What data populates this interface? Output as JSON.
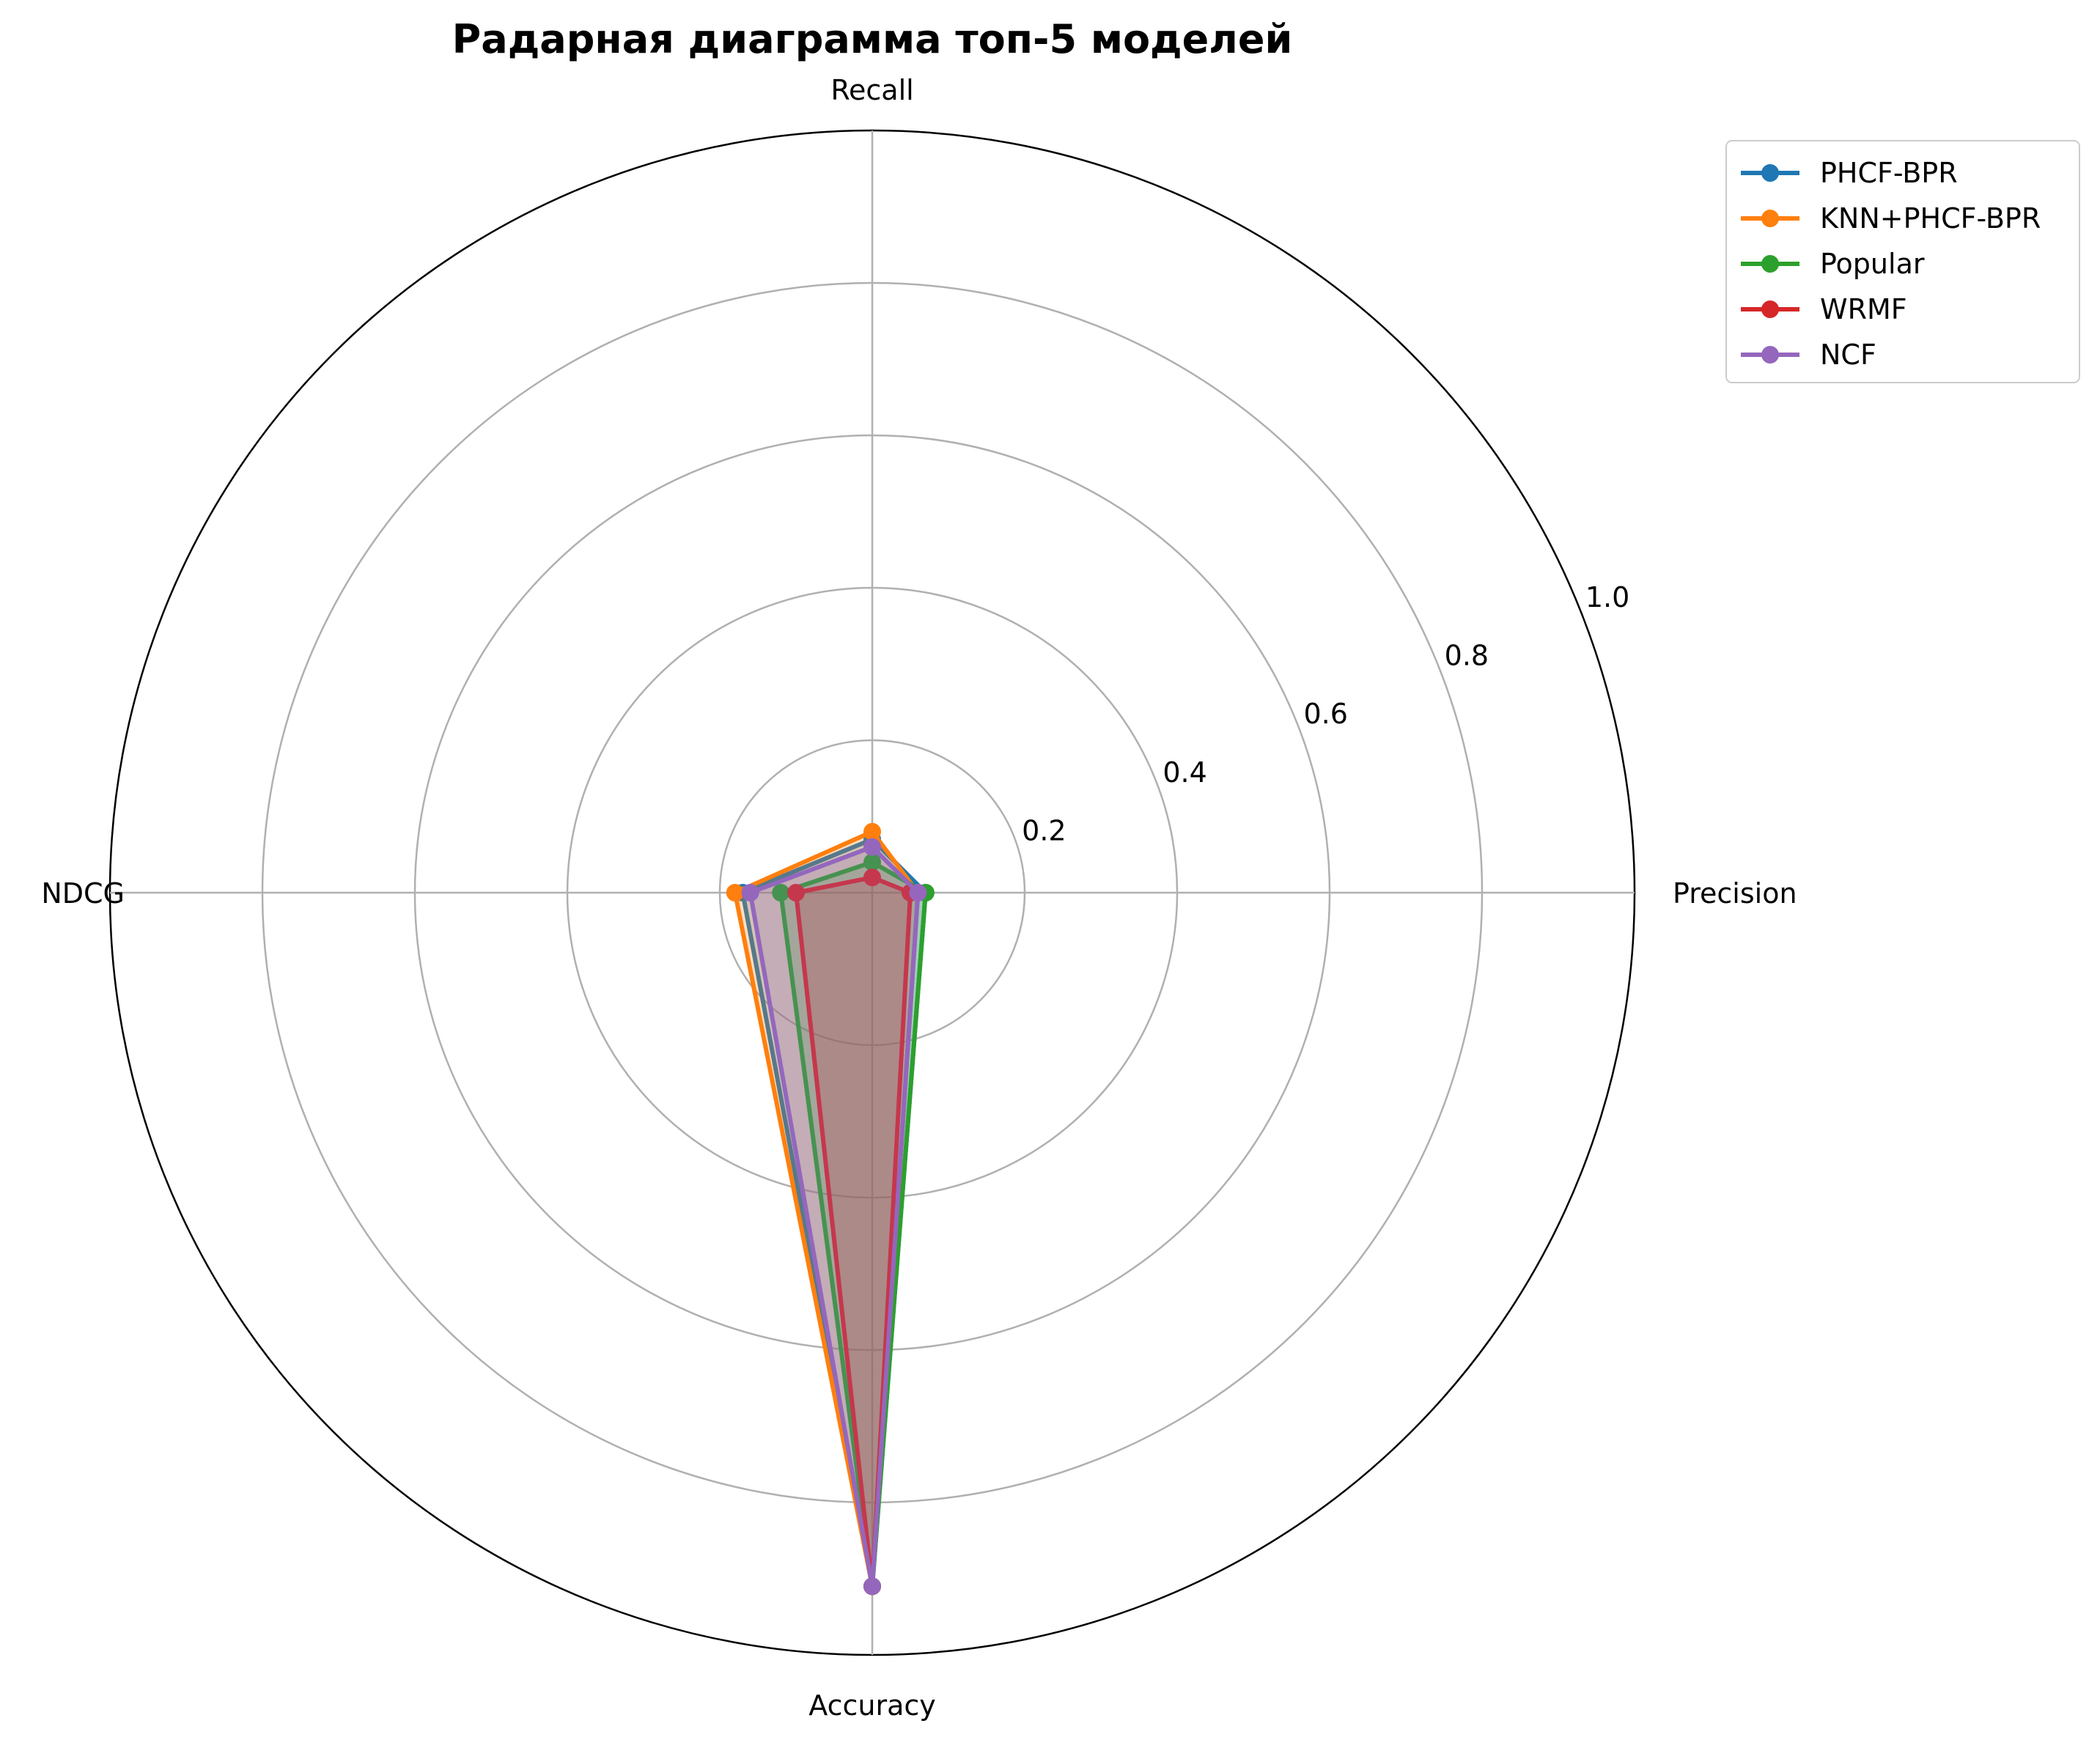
{
  "chart_data": {
    "type": "radar",
    "title": "Радарная диаграмма топ-5 моделей",
    "axes": [
      "Precision",
      "Recall",
      "NDCG",
      "Accuracy"
    ],
    "rlim": [
      0,
      1.0
    ],
    "rticks": [
      0.2,
      0.4,
      0.6,
      0.8,
      1.0
    ],
    "rtick_labels": [
      "0.2",
      "0.4",
      "0.6",
      "0.8",
      "1.0"
    ],
    "grid": true,
    "legend_position": "top-right",
    "series": [
      {
        "name": "PHCF-BPR",
        "color": "#1f77b4",
        "values": [
          0.07,
          0.07,
          0.17,
          0.91
        ]
      },
      {
        "name": "KNN+PHCF-BPR",
        "color": "#ff7f0e",
        "values": [
          0.06,
          0.08,
          0.18,
          0.91
        ]
      },
      {
        "name": "Popular",
        "color": "#2ca02c",
        "values": [
          0.07,
          0.04,
          0.12,
          0.91
        ]
      },
      {
        "name": "WRMF",
        "color": "#d62728",
        "values": [
          0.05,
          0.02,
          0.1,
          0.91
        ]
      },
      {
        "name": "NCF",
        "color": "#9467bd",
        "values": [
          0.06,
          0.06,
          0.16,
          0.91
        ]
      }
    ]
  }
}
